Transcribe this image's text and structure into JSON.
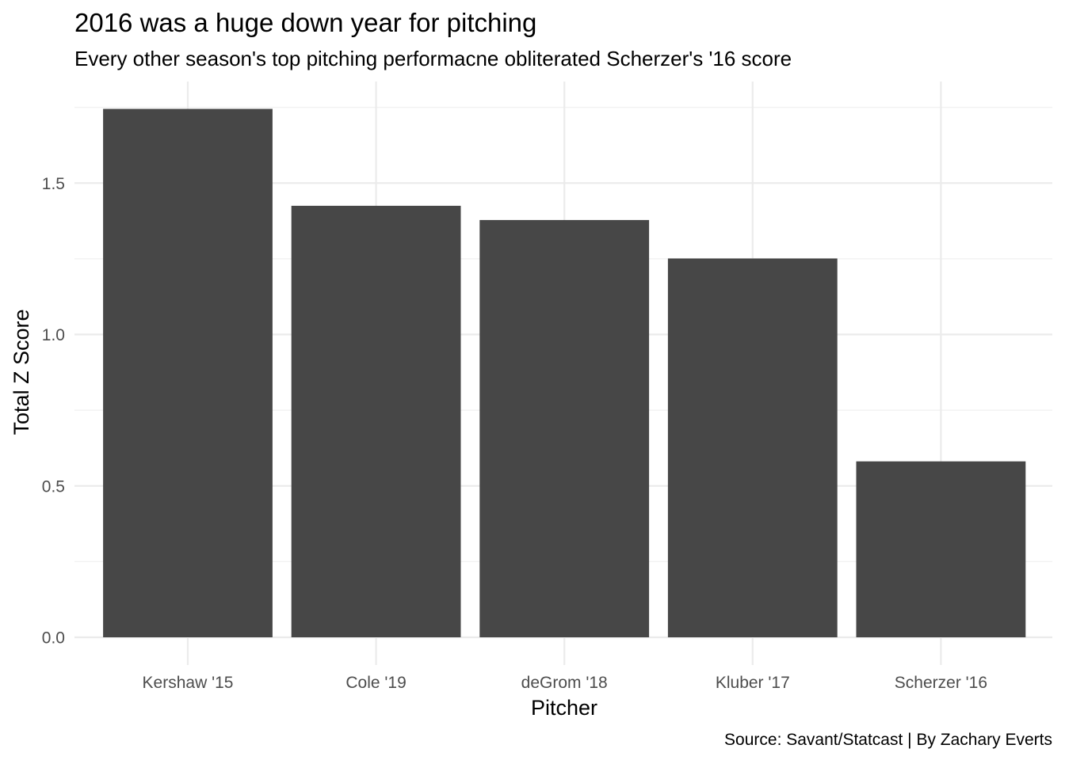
{
  "chart_data": {
    "type": "bar",
    "title": "2016 was a huge down year for pitching",
    "subtitle": "Every other season's top pitching performacne obliterated Scherzer's '16 score",
    "xlabel": "Pitcher",
    "ylabel": "Total Z Score",
    "caption": "Source: Savant/Statcast | By Zachary Everts",
    "categories": [
      "Kershaw '15",
      "Cole '19",
      "deGrom '18",
      "Kluber '17",
      "Scherzer '16"
    ],
    "values": [
      1.745,
      1.425,
      1.378,
      1.251,
      0.581
    ],
    "ylim": [
      0,
      1.83
    ],
    "yticks": [
      0.0,
      0.5,
      1.0,
      1.5
    ],
    "ytick_labels": [
      "0.0",
      "0.5",
      "1.0",
      "1.5"
    ],
    "grid": true,
    "legend": "none",
    "colors": {
      "bar": "#474747",
      "grid_major": "#ebebeb",
      "grid_minor": "#f2f2f2",
      "tick_text": "#4d4d4d",
      "text": "#000000",
      "background": "#ffffff"
    }
  }
}
